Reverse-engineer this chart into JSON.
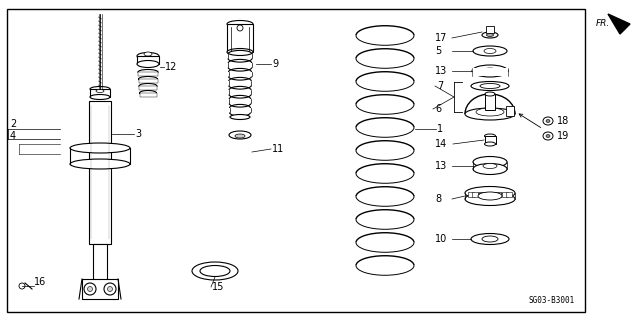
{
  "bg_color": "#ffffff",
  "line_color": "#000000",
  "diagram_code": "SG03-B3001"
}
